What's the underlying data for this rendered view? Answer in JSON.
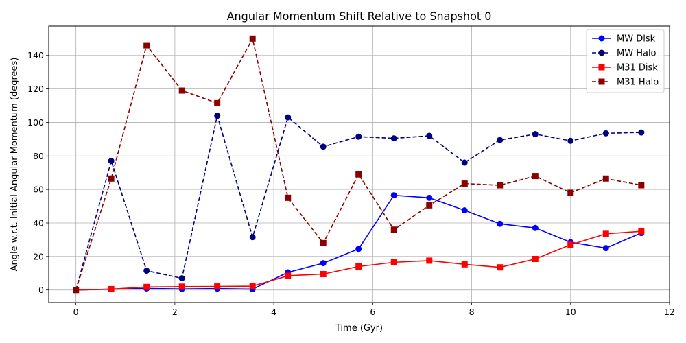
{
  "chart_data": {
    "type": "line",
    "title": "Angular Momentum Shift Relative to Snapshot 0",
    "xlabel": "Time (Gyr)",
    "ylabel": "Angle w.r.t. Initial Angular Momentum (degrees)",
    "xlim": [
      -0.55,
      12.0
    ],
    "ylim": [
      -7.5,
      157.5
    ],
    "xticks": [
      0,
      2,
      4,
      6,
      8,
      10,
      12
    ],
    "yticks": [
      0,
      20,
      40,
      60,
      80,
      100,
      120,
      140
    ],
    "grid": true,
    "legend_position": "top-right",
    "x": [
      0,
      0.714,
      1.429,
      2.143,
      2.857,
      3.571,
      4.286,
      5.0,
      5.714,
      6.429,
      7.143,
      7.857,
      8.571,
      9.286,
      10.0,
      10.714,
      11.429
    ],
    "series": [
      {
        "name": "MW Disk",
        "color": "#0000ff",
        "linestyle": "solid",
        "marker": "circle",
        "values": [
          0,
          0.5,
          0.9,
          0.6,
          0.8,
          0.5,
          10.5,
          16.0,
          24.5,
          56.5,
          55.0,
          47.5,
          39.5,
          37.0,
          28.5,
          25.0,
          34.0
        ]
      },
      {
        "name": "MW Halo",
        "color": "#000080",
        "linestyle": "dashed",
        "marker": "circle",
        "values": [
          0,
          77.0,
          11.5,
          7.0,
          104.0,
          31.5,
          103.0,
          85.5,
          91.5,
          90.5,
          92.0,
          76.0,
          89.5,
          93.0,
          89.0,
          93.5,
          94.0
        ]
      },
      {
        "name": "M31 Disk",
        "color": "#ff0000",
        "linestyle": "solid",
        "marker": "square",
        "values": [
          0,
          0.5,
          1.8,
          2.0,
          2.1,
          2.3,
          8.5,
          9.5,
          14.0,
          16.5,
          17.5,
          15.3,
          13.5,
          18.5,
          27.0,
          33.5,
          35.0
        ]
      },
      {
        "name": "M31 Halo",
        "color": "#8b0000",
        "linestyle": "dashed",
        "marker": "square",
        "values": [
          0,
          66.5,
          146.0,
          119.0,
          111.5,
          150.0,
          55.0,
          28.0,
          69.0,
          36.0,
          50.5,
          63.5,
          62.5,
          68.0,
          58.0,
          66.5,
          62.5
        ]
      }
    ]
  }
}
